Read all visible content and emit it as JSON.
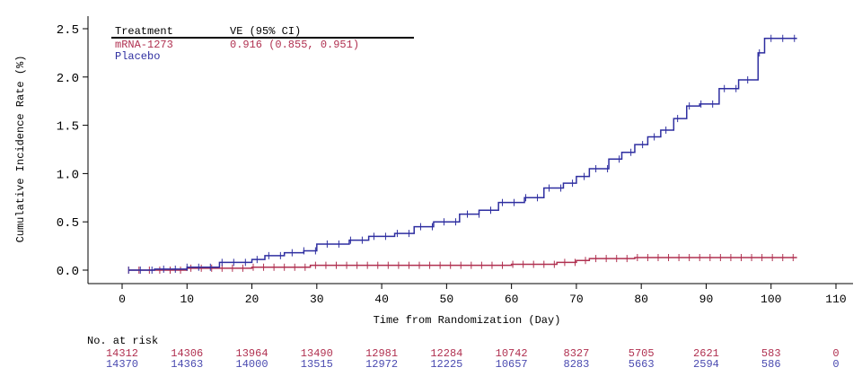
{
  "chart_data": {
    "type": "line",
    "step": true,
    "xlabel": "Time from Randomization (Day)",
    "ylabel": "Cumulative Incidence Rate (%)",
    "xlim": [
      0,
      110
    ],
    "ylim": [
      0,
      2.5
    ],
    "xticks": [
      0,
      10,
      20,
      30,
      40,
      50,
      60,
      70,
      80,
      90,
      100,
      110
    ],
    "yticks": [
      0.0,
      0.5,
      1.0,
      1.5,
      2.0,
      2.5
    ],
    "legend": {
      "header": [
        "Treatment",
        "VE (95% CI)"
      ],
      "rows": [
        {
          "name": "mRNA-1273",
          "ve": "0.916 (0.855, 0.951)"
        },
        {
          "name": "Placebo",
          "ve": ""
        }
      ],
      "placement": "top-left"
    },
    "series": [
      {
        "name": "mRNA-1273",
        "color": "#b03050",
        "x": [
          1,
          10,
          20,
          29,
          50,
          60,
          67,
          70,
          72,
          79,
          104
        ],
        "y": [
          0,
          0.02,
          0.03,
          0.05,
          0.05,
          0.06,
          0.08,
          0.1,
          0.12,
          0.13,
          0.13
        ]
      },
      {
        "name": "Placebo",
        "color": "#2e2ea0",
        "x": [
          1,
          5,
          10,
          15,
          20,
          22,
          25,
          28,
          30,
          35,
          38,
          42,
          45,
          48,
          52,
          55,
          58,
          62,
          65,
          68,
          70,
          72,
          75,
          77,
          79,
          81,
          83,
          85,
          87,
          89,
          92,
          95,
          98,
          99,
          104
        ],
        "y": [
          0,
          0.01,
          0.03,
          0.08,
          0.11,
          0.15,
          0.18,
          0.2,
          0.27,
          0.31,
          0.35,
          0.38,
          0.45,
          0.5,
          0.58,
          0.62,
          0.7,
          0.75,
          0.85,
          0.9,
          0.97,
          1.05,
          1.15,
          1.22,
          1.3,
          1.38,
          1.45,
          1.57,
          1.7,
          1.72,
          1.88,
          1.97,
          2.25,
          2.4,
          2.4
        ]
      }
    ],
    "risk_table": {
      "title": "No. at risk",
      "rows": [
        {
          "name": "mRNA-1273",
          "color": "#b03050",
          "values": [
            14312,
            14306,
            13964,
            13490,
            12981,
            12284,
            10742,
            8327,
            5705,
            2621,
            583,
            0
          ]
        },
        {
          "name": "Placebo",
          "color": "#4a4ab0",
          "values": [
            14370,
            14363,
            14000,
            13515,
            12972,
            12225,
            10657,
            8283,
            5663,
            2594,
            586,
            0
          ]
        }
      ]
    }
  }
}
